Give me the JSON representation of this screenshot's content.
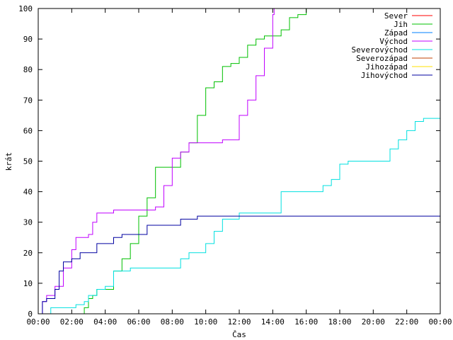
{
  "chart_data": {
    "type": "line",
    "title": "",
    "xlabel": "Čas",
    "ylabel": "krát",
    "x_unit": "time of day",
    "xlim": [
      "00:00",
      "24:00"
    ],
    "ylim": [
      0,
      100
    ],
    "grid": false,
    "legend_position": "top-right",
    "x_ticks": [
      "00:00",
      "02:00",
      "04:00",
      "06:00",
      "08:00",
      "10:00",
      "12:00",
      "14:00",
      "16:00",
      "18:00",
      "20:00",
      "22:00",
      "00:00"
    ],
    "y_ticks": [
      "0",
      "10",
      "20",
      "30",
      "40",
      "50",
      "60",
      "70",
      "80",
      "90",
      "100"
    ],
    "series": [
      {
        "name": "Sever",
        "color": "#ff0000",
        "points": []
      },
      {
        "name": "Jih",
        "color": "#00c000",
        "points": [
          [
            "02:30",
            0
          ],
          [
            "02:45",
            2
          ],
          [
            "03:00",
            5
          ],
          [
            "03:15",
            6
          ],
          [
            "03:30",
            8
          ],
          [
            "04:00",
            8
          ],
          [
            "04:30",
            14
          ],
          [
            "05:00",
            18
          ],
          [
            "05:30",
            23
          ],
          [
            "06:00",
            32
          ],
          [
            "06:30",
            38
          ],
          [
            "07:00",
            48
          ],
          [
            "08:00",
            48
          ],
          [
            "08:30",
            53
          ],
          [
            "09:00",
            56
          ],
          [
            "09:30",
            65
          ],
          [
            "10:00",
            74
          ],
          [
            "10:30",
            76
          ],
          [
            "11:00",
            81
          ],
          [
            "11:30",
            82
          ],
          [
            "12:00",
            84
          ],
          [
            "12:30",
            88
          ],
          [
            "13:00",
            90
          ],
          [
            "13:30",
            91
          ],
          [
            "14:00",
            91
          ],
          [
            "14:30",
            93
          ],
          [
            "15:00",
            97
          ],
          [
            "15:30",
            98
          ],
          [
            "16:00",
            100
          ]
        ]
      },
      {
        "name": "Západ",
        "color": "#0080ff",
        "points": []
      },
      {
        "name": "Východ",
        "color": "#c000ff",
        "points": [
          [
            "00:00",
            0
          ],
          [
            "00:15",
            4
          ],
          [
            "00:30",
            6
          ],
          [
            "01:00",
            9
          ],
          [
            "01:30",
            15
          ],
          [
            "02:00",
            21
          ],
          [
            "02:15",
            25
          ],
          [
            "03:00",
            26
          ],
          [
            "03:15",
            30
          ],
          [
            "03:30",
            33
          ],
          [
            "04:00",
            33
          ],
          [
            "04:30",
            34
          ],
          [
            "06:00",
            34
          ],
          [
            "07:00",
            35
          ],
          [
            "07:30",
            42
          ],
          [
            "08:00",
            51
          ],
          [
            "08:30",
            53
          ],
          [
            "09:00",
            56
          ],
          [
            "10:00",
            56
          ],
          [
            "11:00",
            57
          ],
          [
            "11:30",
            57
          ],
          [
            "12:00",
            65
          ],
          [
            "12:30",
            70
          ],
          [
            "13:00",
            78
          ],
          [
            "13:30",
            87
          ],
          [
            "14:00",
            98
          ],
          [
            "14:05",
            100
          ]
        ]
      },
      {
        "name": "Severovýchod",
        "color": "#00e0e0",
        "points": [
          [
            "00:00",
            0
          ],
          [
            "00:45",
            2
          ],
          [
            "01:00",
            2
          ],
          [
            "02:00",
            2
          ],
          [
            "02:15",
            3
          ],
          [
            "02:45",
            4
          ],
          [
            "03:00",
            6
          ],
          [
            "03:30",
            8
          ],
          [
            "04:00",
            9
          ],
          [
            "04:30",
            14
          ],
          [
            "05:00",
            14
          ],
          [
            "05:30",
            15
          ],
          [
            "06:00",
            15
          ],
          [
            "08:00",
            15
          ],
          [
            "08:30",
            18
          ],
          [
            "09:00",
            20
          ],
          [
            "10:00",
            23
          ],
          [
            "10:30",
            27
          ],
          [
            "11:00",
            31
          ],
          [
            "12:00",
            33
          ],
          [
            "13:00",
            33
          ],
          [
            "14:00",
            33
          ],
          [
            "14:30",
            40
          ],
          [
            "15:00",
            40
          ],
          [
            "16:00",
            40
          ],
          [
            "17:00",
            42
          ],
          [
            "17:30",
            44
          ],
          [
            "18:00",
            49
          ],
          [
            "18:30",
            50
          ],
          [
            "19:00",
            50
          ],
          [
            "20:30",
            50
          ],
          [
            "21:00",
            54
          ],
          [
            "21:30",
            57
          ],
          [
            "22:00",
            60
          ],
          [
            "22:30",
            63
          ],
          [
            "23:00",
            64
          ],
          [
            "23:30",
            64
          ],
          [
            "24:00",
            67
          ]
        ]
      },
      {
        "name": "Severozápad",
        "color": "#c04000",
        "points": []
      },
      {
        "name": "Jihozápad",
        "color": "#ffe000",
        "points": []
      },
      {
        "name": "Jihovýchod",
        "color": "#0000a0",
        "points": [
          [
            "00:00",
            0
          ],
          [
            "00:15",
            4
          ],
          [
            "00:30",
            5
          ],
          [
            "01:00",
            8
          ],
          [
            "01:15",
            14
          ],
          [
            "01:30",
            17
          ],
          [
            "02:00",
            18
          ],
          [
            "02:30",
            20
          ],
          [
            "03:00",
            20
          ],
          [
            "03:30",
            23
          ],
          [
            "04:00",
            23
          ],
          [
            "04:30",
            25
          ],
          [
            "05:00",
            26
          ],
          [
            "06:00",
            26
          ],
          [
            "06:30",
            29
          ],
          [
            "07:00",
            29
          ],
          [
            "08:00",
            29
          ],
          [
            "08:30",
            31
          ],
          [
            "09:00",
            31
          ],
          [
            "09:30",
            32
          ],
          [
            "24:00",
            32
          ]
        ]
      }
    ]
  }
}
